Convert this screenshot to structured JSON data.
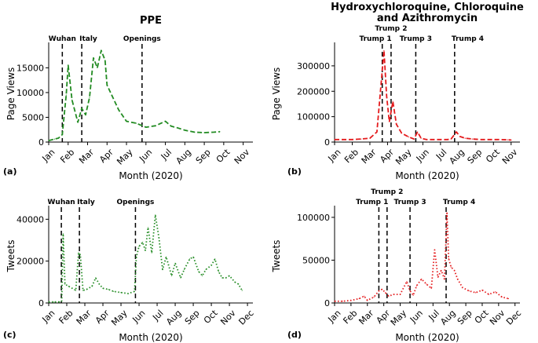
{
  "chart_data": [
    {
      "id": "a",
      "type": "line",
      "title": "PPE",
      "panel_label": "(a)",
      "xlabel": "Month (2020)",
      "ylabel": "Page Views",
      "x_ticks": [
        "Jan",
        "Feb",
        "Mar",
        "Apr",
        "May",
        "Jun",
        "Jul",
        "Aug",
        "Sep",
        "Oct",
        "Nov"
      ],
      "xlim": [
        0,
        10.5
      ],
      "ylim": [
        0,
        19500
      ],
      "y_ticks": [
        0,
        5000,
        10000,
        15000
      ],
      "line_color": "#228b22",
      "line_style": "dashed",
      "events": [
        {
          "label": "Wuhan",
          "x": 0.7
        },
        {
          "label": "Italy",
          "x": 1.7
        },
        {
          "label": "Openings",
          "x": 4.8
        }
      ],
      "x": [
        0.0,
        0.3,
        0.5,
        0.7,
        0.9,
        1.0,
        1.2,
        1.5,
        1.7,
        1.9,
        2.1,
        2.3,
        2.5,
        2.7,
        2.9,
        3.0,
        3.3,
        3.6,
        4.0,
        4.5,
        5.0,
        5.5,
        6.0,
        6.3,
        6.6,
        7.0,
        7.5,
        8.0,
        8.5,
        8.8
      ],
      "y": [
        300,
        600,
        800,
        1500,
        9500,
        15500,
        8500,
        4000,
        6800,
        5500,
        9000,
        17000,
        15000,
        18500,
        16500,
        11500,
        9000,
        6500,
        4200,
        3800,
        3000,
        3300,
        4200,
        3200,
        2900,
        2400,
        2000,
        1900,
        2000,
        2100
      ]
    },
    {
      "id": "b",
      "type": "line",
      "title": "Hydroxychloroquine, Chloroquine and Azithromycin",
      "title_lines": [
        "Hydroxychloroquine, Chloroquine",
        "and Azithromycin"
      ],
      "panel_label": "(b)",
      "xlabel": "Month (2020)",
      "ylabel": "Page Views",
      "x_ticks": [
        "Jan",
        "Feb",
        "Mar",
        "Apr",
        "May",
        "Jun",
        "Jul",
        "Aug",
        "Sep",
        "Oct",
        "Nov"
      ],
      "xlim": [
        0,
        10.5
      ],
      "ylim": [
        0,
        380000
      ],
      "y_ticks": [
        0,
        100000,
        200000,
        300000
      ],
      "line_color": "#e41a1c",
      "line_style": "dashed",
      "events": [
        {
          "label": "Trump 1",
          "x": 2.7
        },
        {
          "label": "Trump 2",
          "x": 3.2
        },
        {
          "label": "Trump 3",
          "x": 4.6
        },
        {
          "label": "Trump 4",
          "x": 6.8
        }
      ],
      "x": [
        0.0,
        0.5,
        1.0,
        1.5,
        2.0,
        2.4,
        2.6,
        2.8,
        2.95,
        3.1,
        3.3,
        3.5,
        3.8,
        4.2,
        4.5,
        4.7,
        4.9,
        5.2,
        5.6,
        6.0,
        6.4,
        6.6,
        6.9,
        7.1,
        7.4,
        7.8,
        8.3,
        8.8,
        9.3,
        9.8,
        10.0
      ],
      "y": [
        10000,
        10000,
        10000,
        12000,
        15000,
        40000,
        200000,
        360000,
        180000,
        80000,
        160000,
        70000,
        35000,
        20000,
        12000,
        40000,
        15000,
        10000,
        10000,
        10000,
        10000,
        12000,
        40000,
        22000,
        15000,
        12000,
        10000,
        10000,
        10000,
        9000,
        8000
      ]
    },
    {
      "id": "c",
      "type": "line",
      "title": "",
      "panel_label": "(c)",
      "xlabel": "Month (2020)",
      "ylabel": "Tweets",
      "x_ticks": [
        "Jan",
        "Feb",
        "Mar",
        "Apr",
        "May",
        "Jun",
        "Jul",
        "Aug",
        "Sep",
        "Oct",
        "Nov",
        "Dec"
      ],
      "xlim": [
        0,
        11.3
      ],
      "ylim": [
        0,
        45000
      ],
      "y_ticks": [
        0,
        20000,
        40000
      ],
      "line_color": "#228b22",
      "line_style": "dotted",
      "events": [
        {
          "label": "Wuhan",
          "x": 0.7
        },
        {
          "label": "Italy",
          "x": 1.7
        },
        {
          "label": "Openings",
          "x": 4.8
        }
      ],
      "x": [
        0.0,
        0.3,
        0.6,
        0.72,
        0.8,
        0.9,
        1.1,
        1.3,
        1.5,
        1.65,
        1.75,
        1.9,
        2.1,
        2.4,
        2.6,
        2.8,
        3.0,
        3.3,
        3.6,
        4.0,
        4.4,
        4.75,
        4.85,
        5.0,
        5.2,
        5.35,
        5.5,
        5.7,
        5.9,
        6.1,
        6.3,
        6.5,
        6.8,
        7.0,
        7.3,
        7.5,
        7.8,
        8.0,
        8.3,
        8.5,
        8.7,
        9.0,
        9.2,
        9.4,
        9.6,
        9.8,
        10.0,
        10.3,
        10.5,
        10.7
      ],
      "y": [
        500,
        500,
        500,
        1000,
        33000,
        9000,
        8000,
        7000,
        6000,
        24000,
        23000,
        6000,
        6500,
        8000,
        12000,
        9000,
        7000,
        6500,
        5500,
        5000,
        4500,
        5500,
        22000,
        27000,
        29000,
        25000,
        36000,
        24000,
        42000,
        31000,
        16000,
        22000,
        13000,
        19000,
        12000,
        16000,
        21000,
        22000,
        15000,
        13000,
        16000,
        18000,
        21000,
        15000,
        12000,
        12000,
        13000,
        10000,
        9000,
        6000
      ]
    },
    {
      "id": "d",
      "type": "line",
      "title": "",
      "panel_label": "(d)",
      "xlabel": "Month (2020)",
      "ylabel": "Tweets",
      "x_ticks": [
        "Jan",
        "Feb",
        "Mar",
        "Apr",
        "May",
        "Jun",
        "Jul",
        "Aug",
        "Sep",
        "Oct",
        "Nov",
        "Dec"
      ],
      "xlim": [
        0,
        11.3
      ],
      "ylim": [
        0,
        110000
      ],
      "y_ticks": [
        0,
        50000,
        100000
      ],
      "line_color": "#e41a1c",
      "line_style": "dotted",
      "events": [
        {
          "label": "Trump 1",
          "x": 2.7
        },
        {
          "label": "Trump 2",
          "x": 3.2
        },
        {
          "label": "Trump 3",
          "x": 4.6
        },
        {
          "label": "Trump 4",
          "x": 6.8
        }
      ],
      "x": [
        0.0,
        0.5,
        1.0,
        1.5,
        1.8,
        2.0,
        2.4,
        2.7,
        2.9,
        3.1,
        3.3,
        3.6,
        4.0,
        4.4,
        4.6,
        4.8,
        5.0,
        5.3,
        5.6,
        5.9,
        6.1,
        6.3,
        6.5,
        6.7,
        6.85,
        6.95,
        7.1,
        7.3,
        7.5,
        7.8,
        8.2,
        8.6,
        9.0,
        9.4,
        9.8,
        10.2,
        10.6
      ],
      "y": [
        2000,
        2000,
        3000,
        5000,
        8000,
        3000,
        7000,
        14000,
        16000,
        12000,
        8000,
        10000,
        10000,
        25000,
        14000,
        9000,
        20000,
        28000,
        22000,
        17000,
        62000,
        30000,
        38000,
        28000,
        105000,
        52000,
        42000,
        38000,
        28000,
        18000,
        14000,
        12000,
        15000,
        10000,
        13000,
        7000,
        5000
      ]
    }
  ]
}
